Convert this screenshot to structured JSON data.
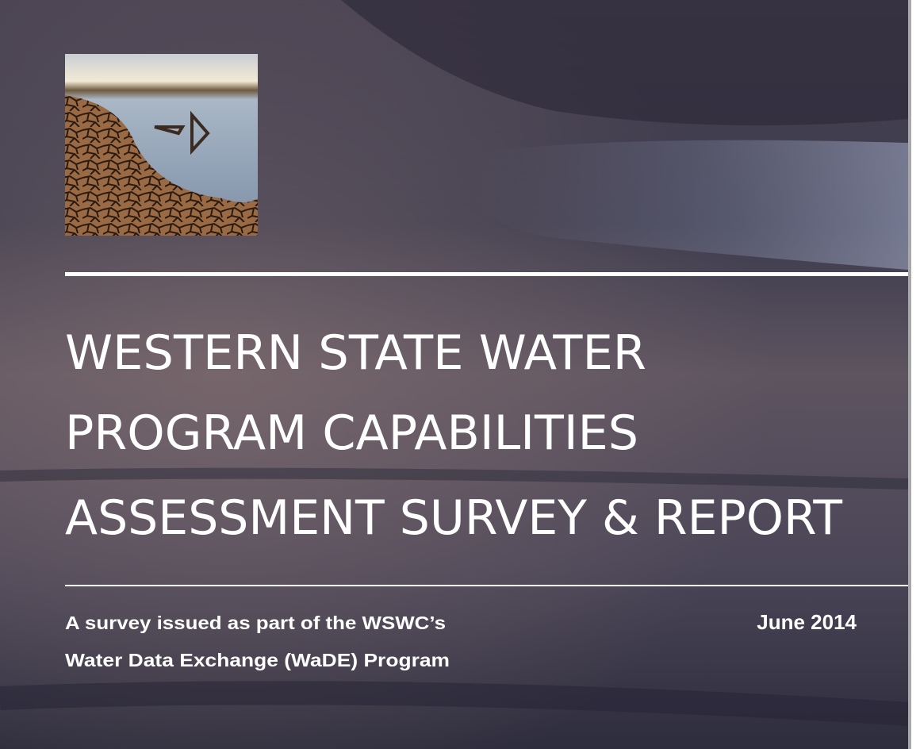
{
  "cover": {
    "title_lines": [
      "WESTERN STATE WATER",
      "PROGRAM CAPABILITIES",
      "ASSESSMENT SURVEY & REPORT"
    ],
    "subtitle_lines": [
      "A survey issued as part of the WSWC’s",
      "Water Data Exchange (WaDE) Program"
    ],
    "date": "June 2014"
  }
}
